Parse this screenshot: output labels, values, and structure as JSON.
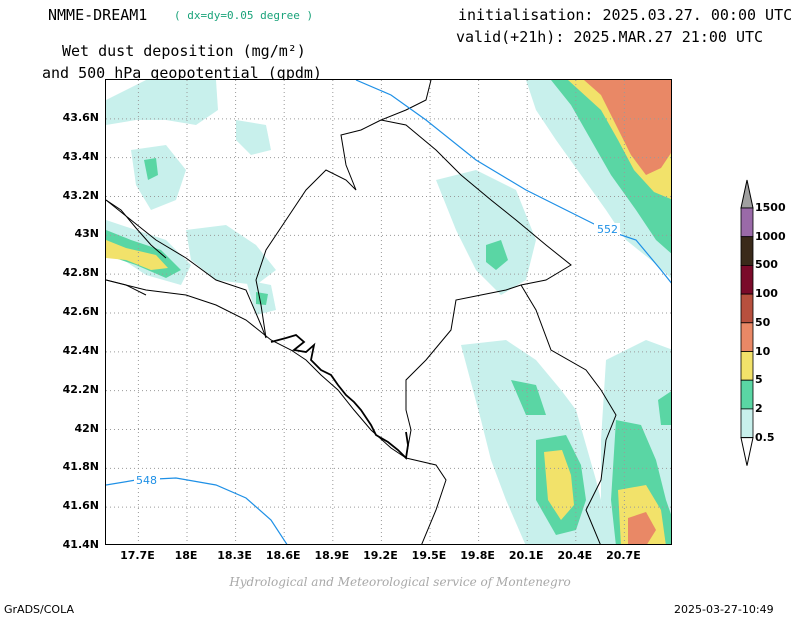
{
  "header": {
    "model": "NMME-DREAM1",
    "resolution": "( dx=dy=0.05 degree )",
    "initialisation": "initialisation: 2025.03.27. 00:00 UTC",
    "valid": "valid(+21h): 2025.MAR.27 21:00 UTC",
    "title_line1": "Wet dust deposition (mg/m²)",
    "title_line2": "and 500 hPa geopotential (gpdm)"
  },
  "map": {
    "lon_range": [
      17.5,
      21.0
    ],
    "lat_range": [
      41.4,
      43.8
    ],
    "lat_labels": [
      "43.6N",
      "43.4N",
      "43.2N",
      "43N",
      "42.8N",
      "42.6N",
      "42.4N",
      "42.2N",
      "42N",
      "41.8N",
      "41.6N",
      "41.4N"
    ],
    "lon_labels": [
      "17.7E",
      "18E",
      "18.3E",
      "18.6E",
      "18.9E",
      "19.2E",
      "19.5E",
      "19.8E",
      "20.1E",
      "20.4E",
      "20.7E"
    ],
    "contours": [
      {
        "label": "552",
        "color": "#1e90e6"
      },
      {
        "label": "548",
        "color": "#1e90e6"
      }
    ]
  },
  "legend": {
    "levels": [
      "0.5",
      "2",
      "5",
      "10",
      "50",
      "100",
      "500",
      "1000",
      "1500"
    ],
    "colors": [
      "#c8f0ec",
      "#5ad6a4",
      "#f2e26a",
      "#e98866",
      "#b7503e",
      "#7a0a2a",
      "#3a2a1a",
      "#9a6aa8",
      "#a0a0a0"
    ]
  },
  "footer": {
    "credit": "Hydrological and Meteorological service of Montenegro",
    "software": "GrADS/COLA",
    "timestamp": "2025-03-27-10:49"
  }
}
